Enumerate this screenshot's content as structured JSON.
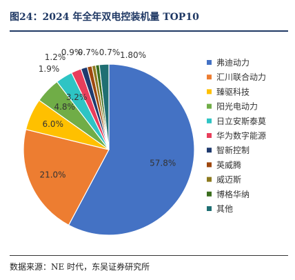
{
  "header": {
    "title": "图24：2024 年全年双电控装机量 TOP10"
  },
  "footer": {
    "source": "数据来源：NE 时代，东吴证券研究所"
  },
  "chart_data": {
    "type": "pie",
    "title": "",
    "legend_position": "right",
    "slices": [
      {
        "label": "弗迪动力",
        "value": 57.8,
        "value_label": "57.8%",
        "color": "#4472c4"
      },
      {
        "label": "汇川联合动力",
        "value": 21.0,
        "value_label": "21.0%",
        "color": "#ed7d31"
      },
      {
        "label": "臻驱科技",
        "value": 6.0,
        "value_label": "6.0%",
        "color": "#ffc000"
      },
      {
        "label": "阳光电动力",
        "value": 4.8,
        "value_label": "4.8%",
        "color": "#70ad47"
      },
      {
        "label": "日立安斯泰莫",
        "value": 3.2,
        "value_label": "3.2%",
        "color": "#2ec4c4"
      },
      {
        "label": "华为数字能源",
        "value": 1.9,
        "value_label": "1.9%",
        "color": "#e83e5b"
      },
      {
        "label": "智新控制",
        "value": 1.2,
        "value_label": "1.2%",
        "color": "#1f3a6e"
      },
      {
        "label": "英威腾",
        "value": 0.9,
        "value_label": "0.9%",
        "color": "#9e480e"
      },
      {
        "label": "威迈斯",
        "value": 0.7,
        "value_label": "0.7%",
        "color": "#8c7a1e"
      },
      {
        "label": "博格华纳",
        "value": 0.7,
        "value_label": "0.7%",
        "color": "#3b6e1e"
      },
      {
        "label": "其他",
        "value": 1.8,
        "value_label": "1.80%",
        "color": "#1f6f73"
      }
    ]
  }
}
